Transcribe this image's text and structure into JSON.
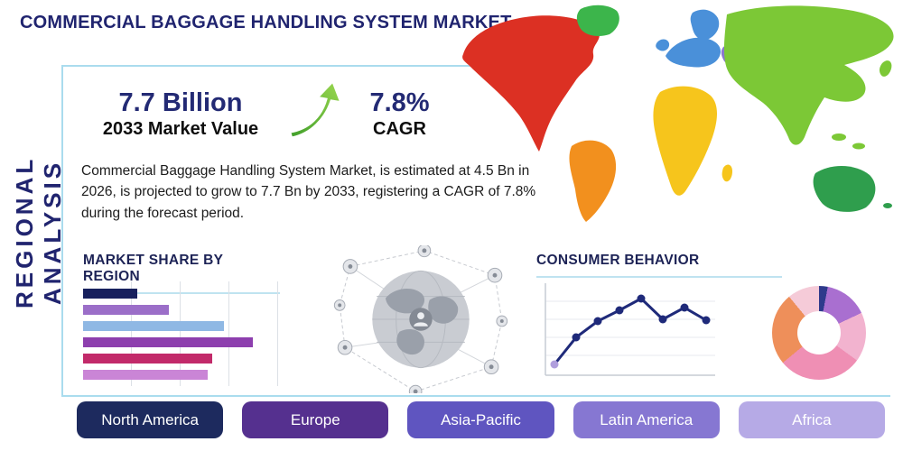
{
  "header": {
    "title": "COMMERCIAL BAGGAGE HANDLING SYSTEM MARKET"
  },
  "side_label": "REGIONAL ANALYSIS",
  "stats": {
    "value": "7.7 Billion",
    "value_caption": "2033 Market Value",
    "cagr": "7.8%",
    "cagr_caption": "CAGR",
    "description": "Commercial Baggage Handling System Market, is estimated at 4.5 Bn in 2026, is projected to grow to 7.7 Bn by 2033, registering a CAGR of 7.8% during the forecast period."
  },
  "sections": {
    "market_share_title": "MARKET SHARE BY REGION",
    "consumer_behavior_title": "CONSUMER BEHAVIOR"
  },
  "regions": [
    {
      "label": "North America",
      "color": "#1d2a5e"
    },
    {
      "label": "Europe",
      "color": "#55308f"
    },
    {
      "label": "Asia-Pacific",
      "color": "#5f55c0"
    },
    {
      "label": "Latin America",
      "color": "#8677d2"
    },
    {
      "label": "Africa",
      "color": "#b6aae6"
    }
  ],
  "chart_data": [
    {
      "type": "bar",
      "title": "MARKET SHARE BY REGION",
      "orientation": "horizontal",
      "categories": [
        "",
        "",
        "",
        "",
        "",
        ""
      ],
      "values": [
        28,
        44,
        72,
        87,
        66,
        64
      ],
      "unit": "percent-of-axis (no numeric labels shown)",
      "colors": [
        "#17205d",
        "#9b6ec8",
        "#8fb8e4",
        "#8d3fae",
        "#c22a6a",
        "#ca85d6"
      ],
      "gridlines": true,
      "axis_labels_visible": false
    },
    {
      "type": "line",
      "title": "CONSUMER BEHAVIOR",
      "x": [
        1,
        2,
        3,
        4,
        5,
        6,
        7,
        8
      ],
      "values": [
        12,
        42,
        60,
        72,
        85,
        62,
        75,
        61
      ],
      "unit": "relative (no numeric labels shown)",
      "line_color": "#1f2a7a",
      "first_marker_color": "#b09fdd",
      "gridlines": true,
      "axis_labels_visible": false
    },
    {
      "type": "pie",
      "donut": true,
      "labels": [
        "",
        "",
        "",
        "",
        "",
        ""
      ],
      "values": [
        3,
        15,
        17,
        29,
        25,
        11
      ],
      "colors": [
        "#2e3a8c",
        "#a96fd0",
        "#f2b3cf",
        "#ef8fb4",
        "#ee8f5a",
        "#f5cbd8"
      ]
    }
  ],
  "map_colors": {
    "north_america": "#dc3023",
    "greenland": "#3cb54b",
    "south_america": "#f2901e",
    "europe": "#4a90d9",
    "central_asia": "#8a77cf",
    "africa": "#f6c51c",
    "asia": "#7cc836",
    "australia": "#2f9e4d"
  },
  "palette": {
    "accent_navy": "#20246f",
    "frame_blue": "#aadcee",
    "arrow_green_light": "#9bd84f",
    "arrow_green_dark": "#3f9e2a"
  }
}
